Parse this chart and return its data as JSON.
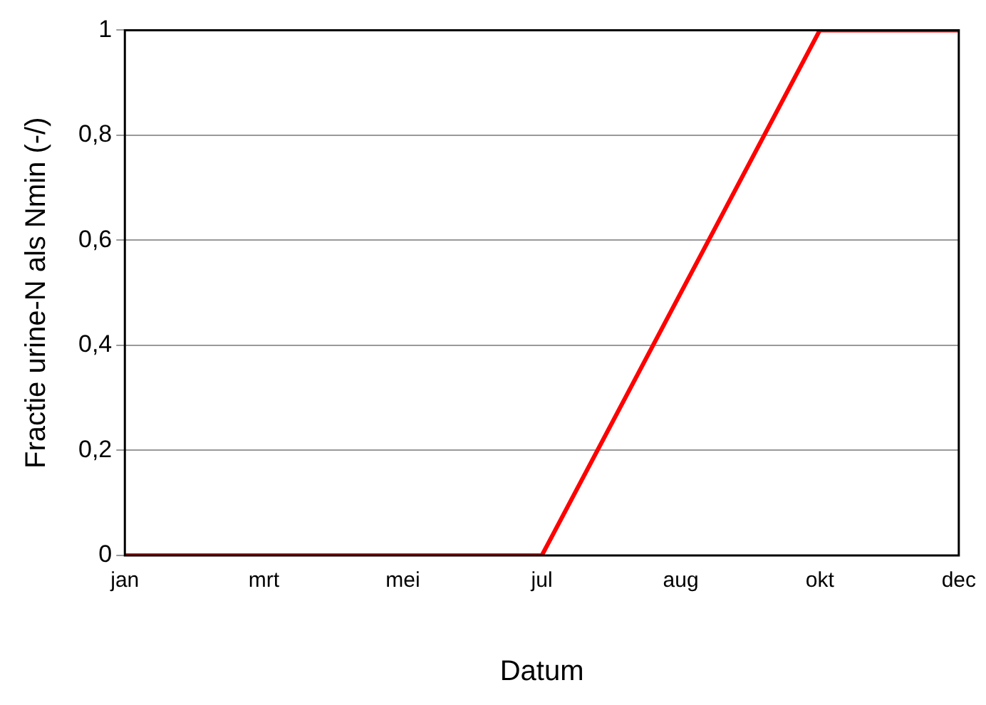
{
  "chart_data": {
    "type": "line",
    "xlabel": "Datum",
    "ylabel": "Fractie urine-N als Nmin (-/)",
    "categories": [
      "jan",
      "mrt",
      "mei",
      "jul",
      "aug",
      "okt",
      "dec"
    ],
    "series": [
      {
        "color": "#ff0000",
        "values": [
          0,
          0,
          0,
          0,
          0.5,
          1,
          1
        ]
      }
    ],
    "ylim": [
      0,
      1
    ],
    "yticks": [
      0,
      {
        "value": 0.2,
        "label": "0,2"
      },
      {
        "value": 0.4,
        "label": "0,4"
      },
      {
        "value": 0.6,
        "label": "0,6"
      },
      {
        "value": 0.8,
        "label": "0,8"
      },
      1
    ],
    "grid": "y",
    "legend": false,
    "marker": "none",
    "line_style": "solid"
  }
}
